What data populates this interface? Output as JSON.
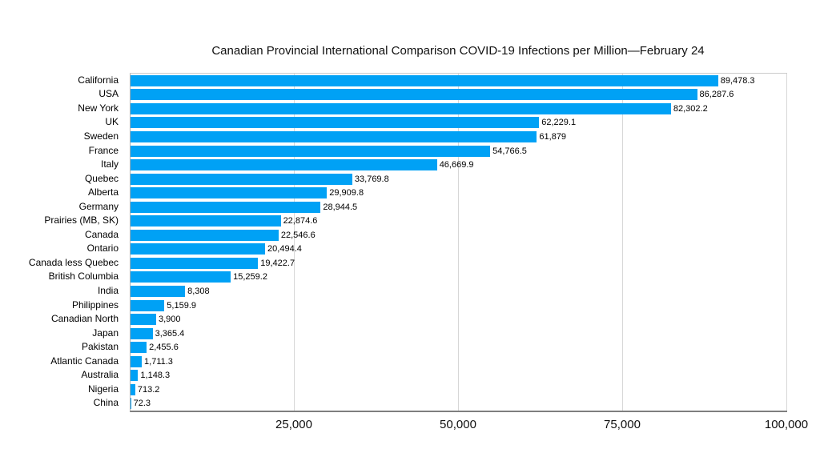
{
  "chart_data": {
    "type": "bar",
    "orientation": "horizontal",
    "title": "Canadian Provincial International Comparison COVID-19 Infections per Million—February 24",
    "categories": [
      "California",
      "USA",
      "New York",
      "UK",
      "Sweden",
      "France",
      "Italy",
      "Quebec",
      "Alberta",
      "Germany",
      "Prairies (MB, SK)",
      "Canada",
      "Ontario",
      "Canada less Quebec",
      "British Columbia",
      "India",
      "Philippines",
      "Canadian North",
      "Japan",
      "Pakistan",
      "Atlantic Canada",
      "Australia",
      "Nigeria",
      "China"
    ],
    "values": [
      89478.3,
      86287.6,
      82302.2,
      62229.1,
      61879,
      54766.5,
      46669.9,
      33769.8,
      29909.8,
      28944.5,
      22874.6,
      22546.6,
      20494.4,
      19422.7,
      15259.2,
      8308,
      5159.9,
      3900,
      3365.4,
      2455.6,
      1711.3,
      1148.3,
      713.2,
      72.3
    ],
    "value_labels": [
      "89,478.3",
      "86,287.6",
      "82,302.2",
      "62,229.1",
      "61,879",
      "54,766.5",
      "46,669.9",
      "33,769.8",
      "29,909.8",
      "28,944.5",
      "22,874.6",
      "22,546.6",
      "20,494.4",
      "19,422.7",
      "15,259.2",
      "8,308",
      "5,159.9",
      "3,900",
      "3,365.4",
      "2,455.6",
      "1,711.3",
      "1,148.3",
      "713.2",
      "72.3"
    ],
    "xlabel": "",
    "ylabel": "",
    "xlim": [
      0,
      100000
    ],
    "x_ticks": [
      {
        "value": 25000,
        "label": "25,000"
      },
      {
        "value": 50000,
        "label": "50,000"
      },
      {
        "value": 75000,
        "label": "75,000"
      },
      {
        "value": 100000,
        "label": "100,000"
      }
    ],
    "grid": "vertical gridlines on",
    "legend": "none",
    "colors": {
      "bar": "#00a1f5",
      "gridline": "#d7d7d7",
      "axis_bottom": "#7f7f7f",
      "axis_left": "#b0b0b0",
      "plot_top_border": "#cccccc",
      "background": "#ffffff",
      "text": "#000000"
    }
  }
}
